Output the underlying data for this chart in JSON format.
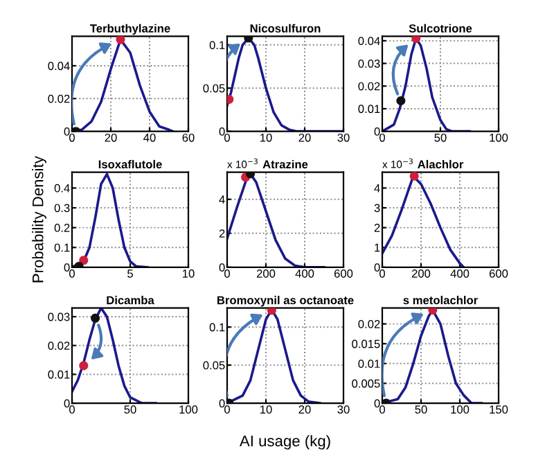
{
  "chart_data": [
    {
      "type": "line",
      "title": "Terbuthylazine",
      "xlim": [
        0,
        60
      ],
      "xticks": [
        0,
        20,
        40,
        60
      ],
      "ylim": [
        0,
        0.058
      ],
      "yticks": [
        0,
        0.02,
        0.04
      ],
      "grid": true,
      "legend": false,
      "series": [
        {
          "color": "#1a1a8c",
          "x": [
            0,
            5,
            10,
            15,
            20,
            25,
            30,
            35,
            40,
            45,
            50,
            52
          ],
          "values": [
            0,
            0.001,
            0.006,
            0.018,
            0.038,
            0.056,
            0.048,
            0.028,
            0.012,
            0.003,
            0.001,
            0
          ]
        },
        {
          "type": "scatter",
          "color": "#d01f3c",
          "x": [
            25
          ],
          "values": [
            0.056
          ]
        },
        {
          "type": "scatter",
          "color": "#111111",
          "x": [
            2
          ],
          "values": [
            0
          ]
        }
      ]
    },
    {
      "type": "line",
      "title": "Nicosulfuron",
      "xlim": [
        0,
        30
      ],
      "xticks": [
        0,
        10,
        20,
        30
      ],
      "ylim": [
        0,
        0.11
      ],
      "yticks": [
        0,
        0.05,
        0.1
      ],
      "grid": true,
      "legend": false,
      "series": [
        {
          "color": "#1a1a8c",
          "x": [
            0,
            1,
            2,
            3,
            4,
            5.5,
            7,
            8,
            10,
            12,
            14,
            16,
            18,
            30
          ],
          "values": [
            0.03,
            0.045,
            0.065,
            0.085,
            0.1,
            0.108,
            0.1,
            0.085,
            0.05,
            0.022,
            0.007,
            0.002,
            0,
            0
          ]
        },
        {
          "type": "scatter",
          "color": "#111111",
          "x": [
            5.5
          ],
          "values": [
            0.108
          ]
        },
        {
          "type": "scatter",
          "color": "#d01f3c",
          "x": [
            0.5
          ],
          "values": [
            0.037
          ]
        }
      ]
    },
    {
      "type": "line",
      "title": "Sulcotrione",
      "xlim": [
        0,
        100
      ],
      "xticks": [
        0,
        50,
        100
      ],
      "ylim": [
        0,
        0.042
      ],
      "yticks": [
        0,
        0.01,
        0.02,
        0.03,
        0.04
      ],
      "grid": true,
      "legend": false,
      "series": [
        {
          "color": "#1a1a8c",
          "x": [
            0,
            10,
            15,
            20,
            25,
            29,
            33,
            38,
            43,
            50,
            55,
            60,
            75
          ],
          "values": [
            0,
            0.003,
            0.01,
            0.02,
            0.034,
            0.041,
            0.038,
            0.028,
            0.015,
            0.005,
            0.001,
            0,
            0
          ]
        },
        {
          "type": "scatter",
          "color": "#d01f3c",
          "x": [
            29
          ],
          "values": [
            0.041
          ]
        },
        {
          "type": "scatter",
          "color": "#111111",
          "x": [
            16
          ],
          "values": [
            0.0135
          ]
        }
      ]
    },
    {
      "type": "line",
      "title": "Isoxaflutole",
      "ylabel": "Probability Density",
      "xlim": [
        0,
        10
      ],
      "xticks": [
        0,
        5,
        10
      ],
      "ylim": [
        0,
        0.48
      ],
      "yticks": [
        0,
        0.1,
        0.2,
        0.3,
        0.4
      ],
      "grid": true,
      "legend": false,
      "series": [
        {
          "color": "#1a1a8c",
          "x": [
            0,
            1,
            1.5,
            2,
            2.5,
            3,
            3.5,
            4,
            4.5,
            5,
            5.5,
            6.5
          ],
          "values": [
            0,
            0.03,
            0.1,
            0.25,
            0.42,
            0.47,
            0.4,
            0.24,
            0.1,
            0.03,
            0.005,
            0
          ]
        },
        {
          "type": "scatter",
          "color": "#d01f3c",
          "x": [
            1
          ],
          "values": [
            0.035
          ]
        },
        {
          "type": "scatter",
          "color": "#111111",
          "x": [
            0.6
          ],
          "values": [
            0.005
          ]
        }
      ]
    },
    {
      "type": "line",
      "title": "Atrazine",
      "annotations": [
        "x 10$^{−3}$"
      ],
      "xlim": [
        0,
        600
      ],
      "xticks": [
        0,
        200,
        400,
        600
      ],
      "ylim": [
        0,
        5.6
      ],
      "yticks": [
        0,
        2,
        4
      ],
      "grid": true,
      "legend": false,
      "series": [
        {
          "color": "#1a1a8c",
          "x": [
            0,
            50,
            100,
            120,
            150,
            200,
            250,
            300,
            350,
            400,
            500
          ],
          "values": [
            1.7,
            3.5,
            5.2,
            5.5,
            5.0,
            3.3,
            1.6,
            0.5,
            0.1,
            0,
            0
          ]
        },
        {
          "type": "scatter",
          "color": "#d01f3c",
          "x": [
            95
          ],
          "values": [
            5.3
          ]
        },
        {
          "type": "scatter",
          "color": "#111111",
          "x": [
            120
          ],
          "values": [
            5.5
          ]
        }
      ]
    },
    {
      "type": "line",
      "title": "Alachlor",
      "annotations": [
        "x 10$^{−3}$"
      ],
      "xlim": [
        0,
        600
      ],
      "xticks": [
        0,
        200,
        400,
        600
      ],
      "ylim": [
        0,
        4.8
      ],
      "yticks": [
        0,
        1,
        2,
        3,
        4
      ],
      "grid": true,
      "legend": false,
      "series": [
        {
          "color": "#1a1a8c",
          "x": [
            0,
            50,
            100,
            160,
            200,
            250,
            300,
            350,
            400,
            420
          ],
          "values": [
            0.7,
            1.6,
            2.9,
            4.6,
            4.2,
            3.2,
            2.0,
            0.9,
            0.2,
            0
          ]
        },
        {
          "type": "scatter",
          "color": "#d01f3c",
          "x": [
            165
          ],
          "values": [
            4.6
          ]
        }
      ]
    },
    {
      "type": "line",
      "title": "Dicamba",
      "xlim": [
        0,
        100
      ],
      "xticks": [
        0,
        50,
        100
      ],
      "ylim": [
        0,
        0.033
      ],
      "yticks": [
        0,
        0.01,
        0.02,
        0.03
      ],
      "grid": true,
      "legend": false,
      "series": [
        {
          "color": "#1a1a8c",
          "x": [
            0,
            5,
            10,
            15,
            20,
            25,
            30,
            35,
            40,
            45,
            50,
            60,
            72
          ],
          "values": [
            0.004,
            0.008,
            0.014,
            0.022,
            0.029,
            0.033,
            0.03,
            0.022,
            0.013,
            0.006,
            0.002,
            0,
            0
          ]
        },
        {
          "type": "scatter",
          "color": "#d01f3c",
          "x": [
            10
          ],
          "values": [
            0.013
          ]
        },
        {
          "type": "scatter",
          "color": "#111111",
          "x": [
            20
          ],
          "values": [
            0.0295
          ]
        }
      ]
    },
    {
      "type": "line",
      "title": "Bromoxynil as octanoate",
      "xlabel": "AI usage (kg)",
      "xlim": [
        0,
        30
      ],
      "xticks": [
        0,
        10,
        20,
        30
      ],
      "ylim": [
        0,
        0.125
      ],
      "yticks": [
        0,
        0.05,
        0.1
      ],
      "grid": true,
      "legend": false,
      "series": [
        {
          "color": "#1a1a8c",
          "x": [
            0,
            4,
            6,
            8,
            10,
            11.5,
            13,
            15,
            17,
            19,
            21,
            24
          ],
          "values": [
            0,
            0.01,
            0.03,
            0.07,
            0.11,
            0.123,
            0.11,
            0.07,
            0.03,
            0.01,
            0.002,
            0
          ]
        },
        {
          "type": "scatter",
          "color": "#d01f3c",
          "x": [
            11.5
          ],
          "values": [
            0.122
          ]
        },
        {
          "type": "scatter",
          "color": "#111111",
          "x": [
            0.5
          ],
          "values": [
            0
          ]
        }
      ]
    },
    {
      "type": "line",
      "title": "s metolachlor",
      "xlim": [
        0,
        150
      ],
      "xticks": [
        0,
        50,
        100,
        150
      ],
      "ylim": [
        0,
        0.024
      ],
      "yticks": [
        0,
        0.005,
        0.01,
        0.015,
        0.02
      ],
      "grid": true,
      "legend": false,
      "series": [
        {
          "color": "#1a1a8c",
          "x": [
            0,
            20,
            30,
            40,
            50,
            60,
            65,
            75,
            85,
            95,
            105,
            115,
            128
          ],
          "values": [
            0,
            0.001,
            0.004,
            0.01,
            0.017,
            0.022,
            0.0235,
            0.02,
            0.012,
            0.005,
            0.002,
            0,
            0
          ]
        },
        {
          "type": "scatter",
          "color": "#d01f3c",
          "x": [
            65
          ],
          "values": [
            0.0235
          ]
        },
        {
          "type": "scatter",
          "color": "#111111",
          "x": [
            5
          ],
          "values": [
            0
          ]
        }
      ]
    }
  ]
}
